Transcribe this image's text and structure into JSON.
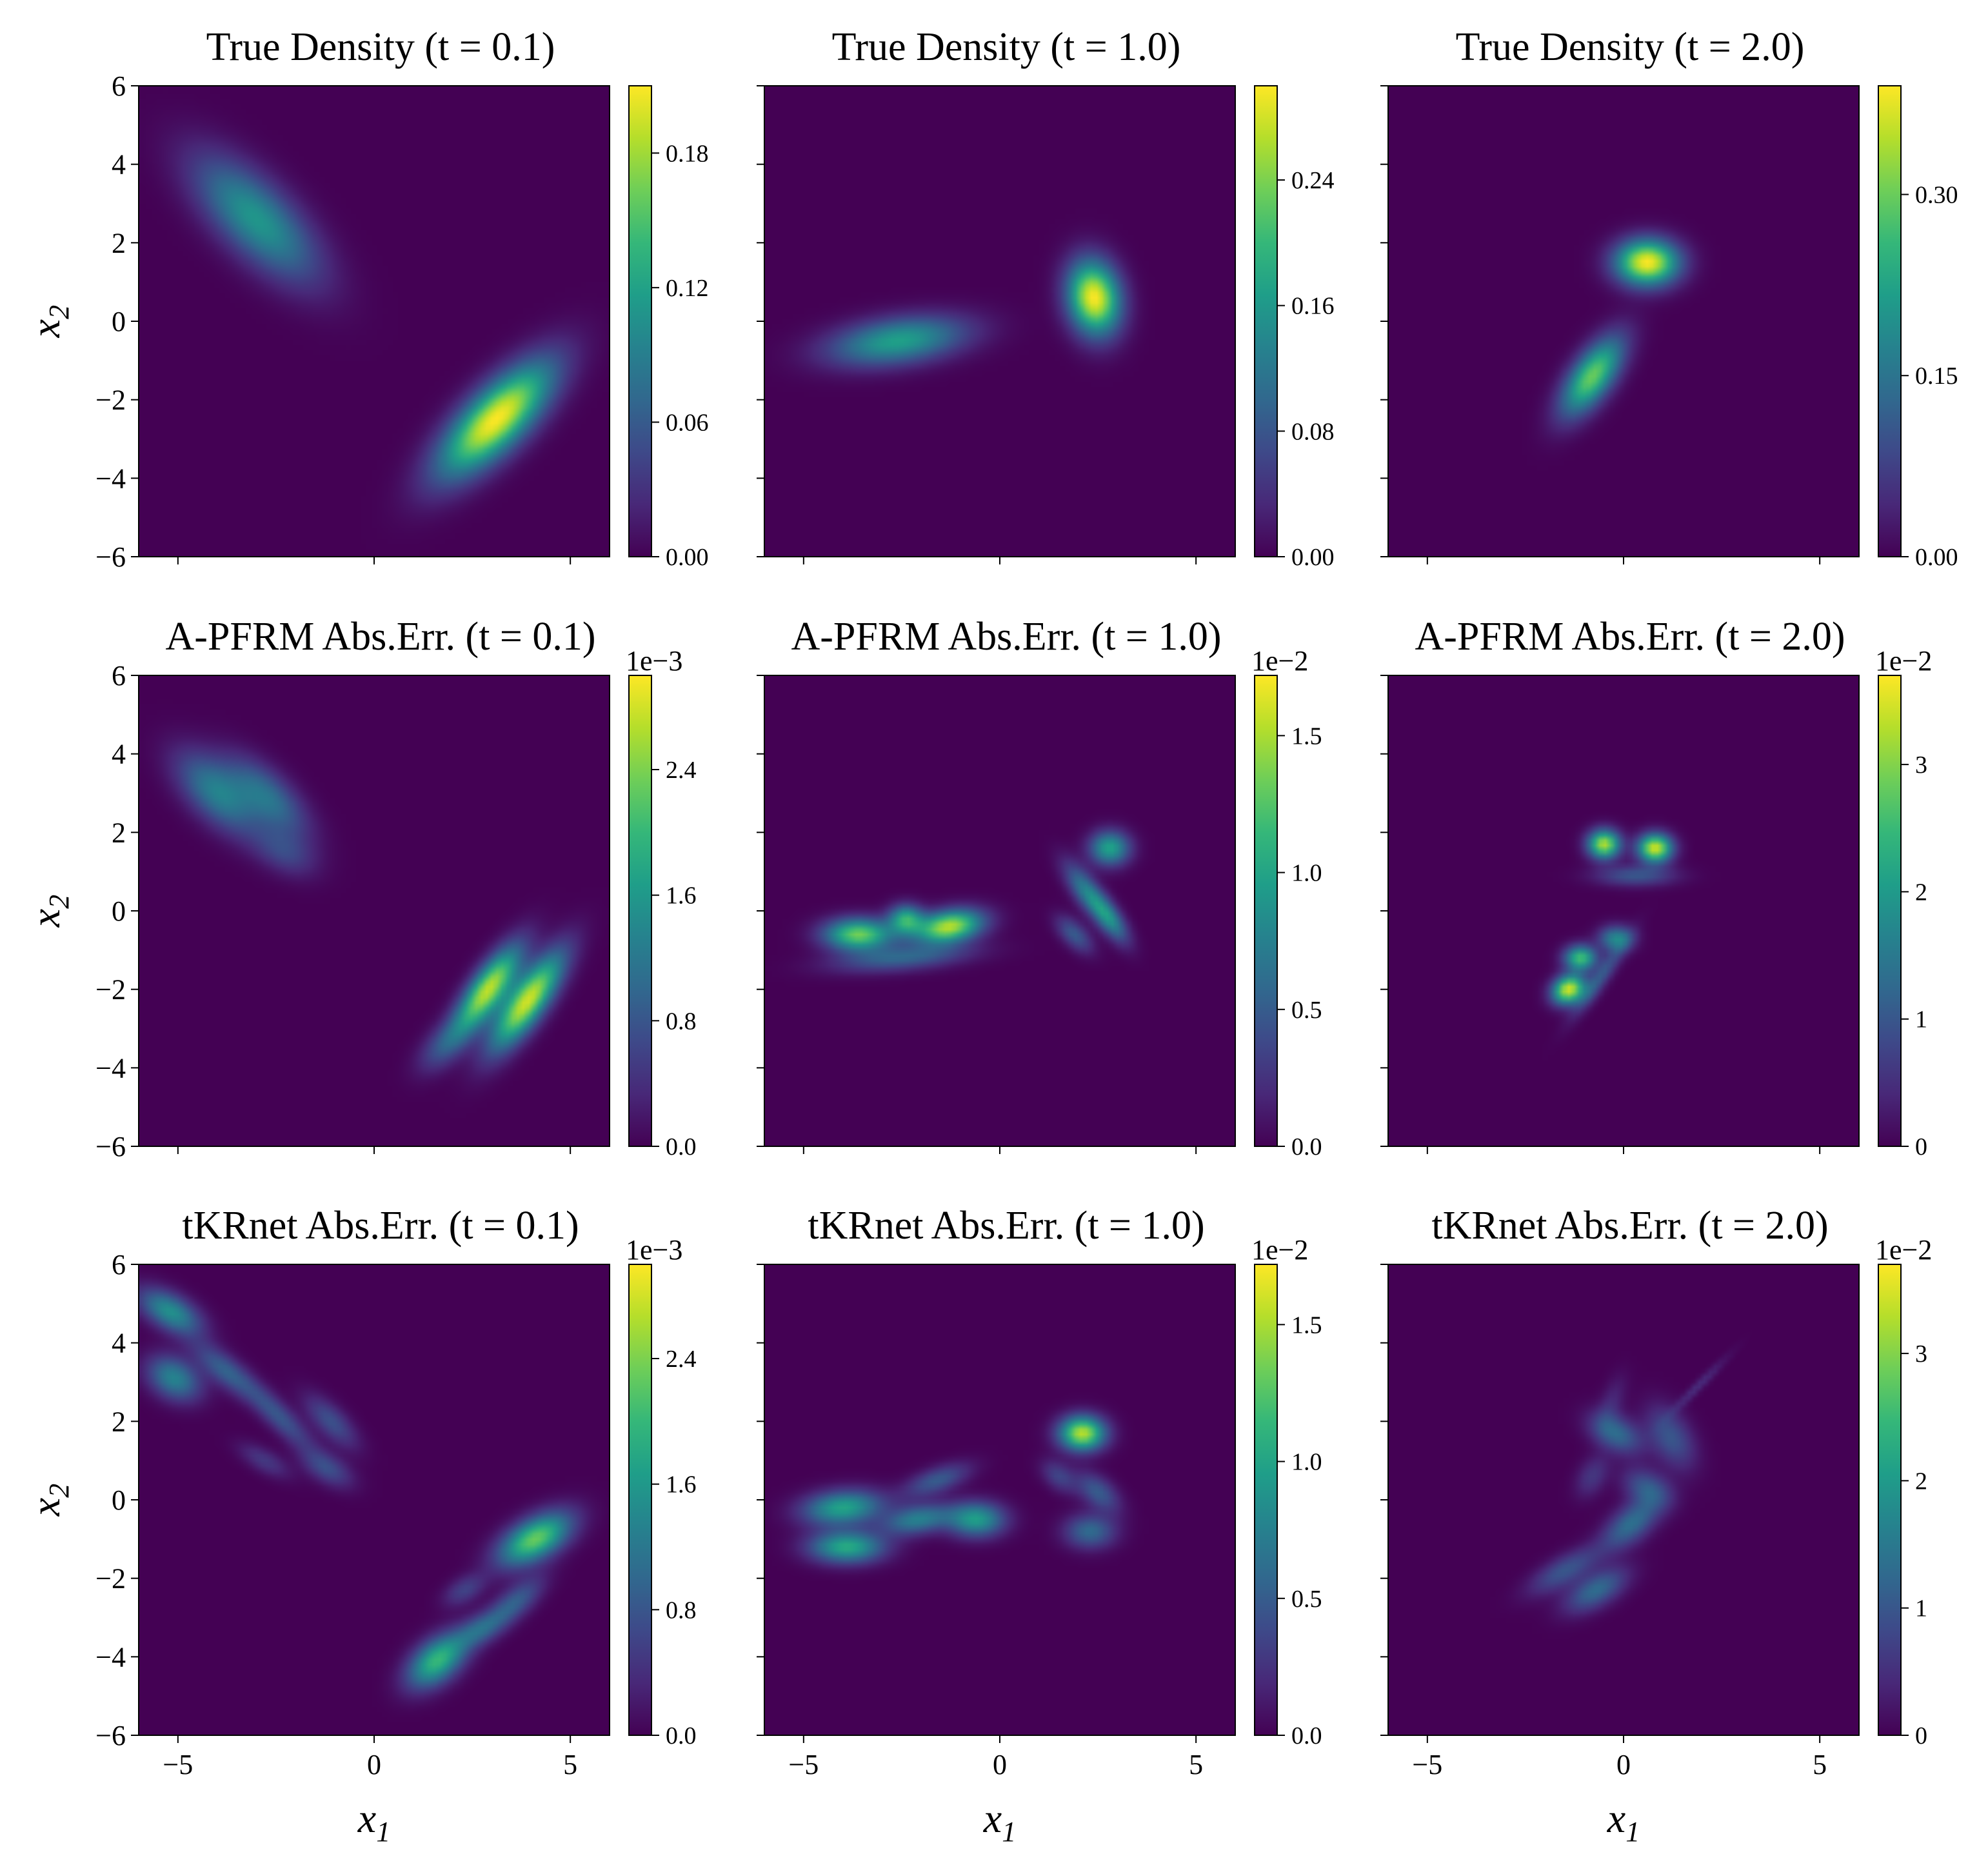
{
  "colors": {
    "viridis": [
      "#440154",
      "#482878",
      "#3e4989",
      "#31688e",
      "#26828e",
      "#1f9e89",
      "#35b779",
      "#6ece58",
      "#b5de2b",
      "#fde725"
    ],
    "background": "#ffffff",
    "axes": "#000000"
  },
  "chart_data": [
    {
      "type": "heatmap",
      "row": 0,
      "col": 0,
      "title": "True Density (t = 0.1)",
      "xlim": [
        -6,
        6
      ],
      "ylim": [
        -6,
        6
      ],
      "xticks": [
        "−5",
        "0",
        "5"
      ],
      "yticks": [
        "−6",
        "−4",
        "−2",
        "0",
        "2",
        "4",
        "6"
      ],
      "xlabel": "",
      "ylabel": "x2",
      "colorbar": {
        "min": 0,
        "max": 0.21,
        "ticks": [
          "0.00",
          "0.06",
          "0.12",
          "0.18"
        ],
        "tick_values": [
          0,
          0.06,
          0.12,
          0.18
        ],
        "offset": ""
      },
      "blobs": [
        {
          "x": -3.0,
          "y": 2.6,
          "sx": 1.4,
          "sy": 0.6,
          "angle": -45,
          "amp": 0.11
        },
        {
          "x": 3.1,
          "y": -2.5,
          "sx": 1.3,
          "sy": 0.5,
          "angle": 45,
          "amp": 0.21
        }
      ]
    },
    {
      "type": "heatmap",
      "row": 0,
      "col": 1,
      "title": "True Density (t = 1.0)",
      "xlim": [
        -6,
        6
      ],
      "ylim": [
        -6,
        6
      ],
      "xticks": [
        "−5",
        "0",
        "5"
      ],
      "yticks": [],
      "xlabel": "",
      "ylabel": "",
      "colorbar": {
        "min": 0,
        "max": 0.3,
        "ticks": [
          "0.00",
          "0.08",
          "0.16",
          "0.24"
        ],
        "tick_values": [
          0,
          0.08,
          0.16,
          0.24
        ],
        "offset": ""
      },
      "blobs": [
        {
          "x": -2.6,
          "y": -0.5,
          "sx": 1.2,
          "sy": 0.4,
          "angle": 8,
          "amp": 0.17
        },
        {
          "x": 2.4,
          "y": 0.6,
          "sx": 0.65,
          "sy": 0.45,
          "angle": -80,
          "amp": 0.3
        }
      ]
    },
    {
      "type": "heatmap",
      "row": 0,
      "col": 2,
      "title": "True Density (t = 2.0)",
      "xlim": [
        -6,
        6
      ],
      "ylim": [
        -6,
        6
      ],
      "xticks": [
        "−5",
        "0",
        "5"
      ],
      "yticks": [],
      "xlabel": "",
      "ylabel": "",
      "colorbar": {
        "min": 0,
        "max": 0.39,
        "ticks": [
          "0.00",
          "0.15",
          "0.30"
        ],
        "tick_values": [
          0,
          0.15,
          0.3
        ],
        "offset": ""
      },
      "blobs": [
        {
          "x": 0.6,
          "y": 1.5,
          "sx": 0.55,
          "sy": 0.4,
          "angle": 0,
          "amp": 0.39
        },
        {
          "x": -0.8,
          "y": -1.4,
          "sx": 0.8,
          "sy": 0.35,
          "angle": 55,
          "amp": 0.3
        }
      ]
    },
    {
      "type": "heatmap",
      "row": 1,
      "col": 0,
      "title": "A-PFRM Abs.Err. (t = 0.1)",
      "xlim": [
        -6,
        6
      ],
      "ylim": [
        -6,
        6
      ],
      "xticks": [
        "−5",
        "0",
        "5"
      ],
      "yticks": [
        "−6",
        "−4",
        "−2",
        "0",
        "2",
        "4",
        "6"
      ],
      "xlabel": "",
      "ylabel": "x2",
      "colorbar": {
        "min": 0,
        "max": 3.0,
        "ticks": [
          "0.0",
          "0.8",
          "1.6",
          "2.4"
        ],
        "tick_values": [
          0,
          0.8,
          1.6,
          2.4
        ],
        "offset": "1e−3"
      },
      "blobs": [
        {
          "x": -4.0,
          "y": 3.0,
          "sx": 0.9,
          "sy": 0.45,
          "angle": -45,
          "amp": 1.3
        },
        {
          "x": -2.7,
          "y": 2.9,
          "sx": 0.9,
          "sy": 0.4,
          "angle": -45,
          "amp": 1.1
        },
        {
          "x": -2.3,
          "y": 1.5,
          "sx": 0.6,
          "sy": 0.35,
          "angle": -30,
          "amp": 0.6
        },
        {
          "x": 2.9,
          "y": -2.0,
          "sx": 0.9,
          "sy": 0.3,
          "angle": 55,
          "amp": 2.7
        },
        {
          "x": 3.9,
          "y": -2.3,
          "sx": 1.0,
          "sy": 0.32,
          "angle": 55,
          "amp": 2.8
        },
        {
          "x": 1.8,
          "y": -3.4,
          "sx": 0.6,
          "sy": 0.3,
          "angle": 45,
          "amp": 0.7
        }
      ]
    },
    {
      "type": "heatmap",
      "row": 1,
      "col": 1,
      "title": "A-PFRM Abs.Err. (t = 1.0)",
      "xlim": [
        -6,
        6
      ],
      "ylim": [
        -6,
        6
      ],
      "xticks": [
        "−5",
        "0",
        "5"
      ],
      "yticks": [],
      "xlabel": "",
      "ylabel": "",
      "colorbar": {
        "min": 0,
        "max": 1.72,
        "ticks": [
          "0.0",
          "0.5",
          "1.0",
          "1.5"
        ],
        "tick_values": [
          0,
          0.5,
          1.0,
          1.5
        ],
        "offset": "1e−2"
      },
      "blobs": [
        {
          "x": -3.6,
          "y": -0.6,
          "sx": 0.6,
          "sy": 0.28,
          "angle": 0,
          "amp": 1.35
        },
        {
          "x": -1.3,
          "y": -0.4,
          "sx": 0.6,
          "sy": 0.28,
          "angle": 10,
          "amp": 1.55
        },
        {
          "x": -2.4,
          "y": -0.2,
          "sx": 0.3,
          "sy": 0.25,
          "angle": 0,
          "amp": 1.0
        },
        {
          "x": -2.5,
          "y": -1.2,
          "sx": 1.2,
          "sy": 0.22,
          "angle": 5,
          "amp": 0.55
        },
        {
          "x": 2.8,
          "y": 1.6,
          "sx": 0.35,
          "sy": 0.3,
          "angle": 0,
          "amp": 1.0
        },
        {
          "x": 2.2,
          "y": 0.5,
          "sx": 0.6,
          "sy": 0.22,
          "angle": -55,
          "amp": 0.7
        },
        {
          "x": 2.8,
          "y": -0.2,
          "sx": 0.5,
          "sy": 0.2,
          "angle": -55,
          "amp": 0.75
        },
        {
          "x": 1.9,
          "y": -0.6,
          "sx": 0.4,
          "sy": 0.2,
          "angle": -45,
          "amp": 0.5
        }
      ]
    },
    {
      "type": "heatmap",
      "row": 1,
      "col": 2,
      "title": "A-PFRM Abs.Err. (t = 2.0)",
      "xlim": [
        -6,
        6
      ],
      "ylim": [
        -6,
        6
      ],
      "xticks": [
        "−5",
        "0",
        "5"
      ],
      "yticks": [],
      "xlabel": "",
      "ylabel": "",
      "colorbar": {
        "min": 0,
        "max": 3.7,
        "ticks": [
          "0",
          "1",
          "2",
          "3"
        ],
        "tick_values": [
          0,
          1,
          2,
          3
        ],
        "offset": "1e−2"
      },
      "blobs": [
        {
          "x": -0.5,
          "y": 1.7,
          "sx": 0.28,
          "sy": 0.25,
          "angle": 0,
          "amp": 3.3
        },
        {
          "x": 0.8,
          "y": 1.6,
          "sx": 0.3,
          "sy": 0.25,
          "angle": 0,
          "amp": 3.5
        },
        {
          "x": 0.3,
          "y": 0.9,
          "sx": 0.7,
          "sy": 0.18,
          "angle": 0,
          "amp": 1.0
        },
        {
          "x": -1.1,
          "y": -1.2,
          "sx": 0.28,
          "sy": 0.22,
          "angle": 0,
          "amp": 2.6
        },
        {
          "x": -1.4,
          "y": -2.0,
          "sx": 0.3,
          "sy": 0.24,
          "angle": 30,
          "amp": 3.5
        },
        {
          "x": -0.2,
          "y": -0.7,
          "sx": 0.3,
          "sy": 0.22,
          "angle": 0,
          "amp": 1.7
        },
        {
          "x": -0.6,
          "y": -1.7,
          "sx": 0.8,
          "sy": 0.15,
          "angle": 55,
          "amp": 1.0
        }
      ]
    },
    {
      "type": "heatmap",
      "row": 2,
      "col": 0,
      "title": "tKRnet Abs.Err. (t = 0.1)",
      "xlim": [
        -6,
        6
      ],
      "ylim": [
        -6,
        6
      ],
      "xticks": [
        "−5",
        "0",
        "5"
      ],
      "yticks": [
        "−6",
        "−4",
        "−2",
        "0",
        "2",
        "4",
        "6"
      ],
      "xlabel": "x1",
      "ylabel": "x2",
      "colorbar": {
        "min": 0,
        "max": 3.0,
        "ticks": [
          "0.0",
          "0.8",
          "1.6",
          "2.4"
        ],
        "tick_values": [
          0,
          0.8,
          1.6,
          2.4
        ],
        "offset": "1e−3"
      },
      "blobs": [
        {
          "x": -5.2,
          "y": 4.8,
          "sx": 0.6,
          "sy": 0.3,
          "angle": -30,
          "amp": 1.5
        },
        {
          "x": -5.1,
          "y": 3.1,
          "sx": 0.5,
          "sy": 0.35,
          "angle": -30,
          "amp": 1.35
        },
        {
          "x": -3.8,
          "y": 3.3,
          "sx": 0.7,
          "sy": 0.25,
          "angle": -40,
          "amp": 0.9
        },
        {
          "x": -2.4,
          "y": 2.1,
          "sx": 0.8,
          "sy": 0.22,
          "angle": -45,
          "amp": 0.8
        },
        {
          "x": -1.1,
          "y": 2.0,
          "sx": 0.6,
          "sy": 0.25,
          "angle": -45,
          "amp": 0.75
        },
        {
          "x": -1.2,
          "y": 0.8,
          "sx": 0.5,
          "sy": 0.25,
          "angle": -30,
          "amp": 0.7
        },
        {
          "x": -2.8,
          "y": 1.0,
          "sx": 0.5,
          "sy": 0.2,
          "angle": -30,
          "amp": 0.5
        },
        {
          "x": 4.1,
          "y": -1.0,
          "sx": 0.7,
          "sy": 0.35,
          "angle": 30,
          "amp": 2.3
        },
        {
          "x": 3.6,
          "y": -2.6,
          "sx": 0.6,
          "sy": 0.25,
          "angle": 40,
          "amp": 0.9
        },
        {
          "x": 2.7,
          "y": -3.3,
          "sx": 0.5,
          "sy": 0.25,
          "angle": 30,
          "amp": 0.9
        },
        {
          "x": 1.6,
          "y": -4.1,
          "sx": 0.6,
          "sy": 0.35,
          "angle": 40,
          "amp": 2.0
        },
        {
          "x": 2.3,
          "y": -2.3,
          "sx": 0.4,
          "sy": 0.22,
          "angle": 30,
          "amp": 0.6
        }
      ]
    },
    {
      "type": "heatmap",
      "row": 2,
      "col": 1,
      "title": "tKRnet Abs.Err. (t = 1.0)",
      "xlim": [
        -6,
        6
      ],
      "ylim": [
        -6,
        6
      ],
      "xticks": [
        "−5",
        "0",
        "5"
      ],
      "yticks": [],
      "xlabel": "x1",
      "ylabel": "",
      "colorbar": {
        "min": 0,
        "max": 1.72,
        "ticks": [
          "0.0",
          "0.5",
          "1.0",
          "1.5"
        ],
        "tick_values": [
          0,
          0.5,
          1.0,
          1.5
        ],
        "offset": "1e−2"
      },
      "blobs": [
        {
          "x": -4.0,
          "y": -0.2,
          "sx": 0.7,
          "sy": 0.3,
          "angle": 5,
          "amp": 1.0
        },
        {
          "x": -3.9,
          "y": -1.2,
          "sx": 0.65,
          "sy": 0.28,
          "angle": 0,
          "amp": 1.05
        },
        {
          "x": -2.1,
          "y": -0.5,
          "sx": 0.6,
          "sy": 0.25,
          "angle": 10,
          "amp": 0.75
        },
        {
          "x": -0.6,
          "y": -0.5,
          "sx": 0.5,
          "sy": 0.3,
          "angle": 0,
          "amp": 0.95
        },
        {
          "x": -1.6,
          "y": 0.5,
          "sx": 0.6,
          "sy": 0.22,
          "angle": 20,
          "amp": 0.5
        },
        {
          "x": 2.1,
          "y": 1.7,
          "sx": 0.4,
          "sy": 0.3,
          "angle": 0,
          "amp": 1.55
        },
        {
          "x": 2.5,
          "y": 0.2,
          "sx": 0.45,
          "sy": 0.25,
          "angle": -40,
          "amp": 0.5
        },
        {
          "x": 2.3,
          "y": -0.8,
          "sx": 0.45,
          "sy": 0.3,
          "angle": 0,
          "amp": 0.6
        },
        {
          "x": 1.5,
          "y": 0.6,
          "sx": 0.35,
          "sy": 0.22,
          "angle": -40,
          "amp": 0.35
        }
      ]
    },
    {
      "type": "heatmap",
      "row": 2,
      "col": 2,
      "title": "tKRnet Abs.Err. (t = 2.0)",
      "xlim": [
        -6,
        6
      ],
      "ylim": [
        -6,
        6
      ],
      "xticks": [
        "−5",
        "0",
        "5"
      ],
      "yticks": [],
      "xlabel": "x1",
      "ylabel": "",
      "colorbar": {
        "min": 0,
        "max": 3.7,
        "ticks": [
          "0",
          "1",
          "2",
          "3"
        ],
        "tick_values": [
          0,
          1,
          2,
          3
        ],
        "offset": "1e−2"
      },
      "blobs": [
        {
          "x": -0.2,
          "y": 1.7,
          "sx": 0.5,
          "sy": 0.3,
          "angle": -30,
          "amp": 1.3
        },
        {
          "x": 1.2,
          "y": 1.6,
          "sx": 0.6,
          "sy": 0.35,
          "angle": -60,
          "amp": 1.0
        },
        {
          "x": 0.6,
          "y": 0.3,
          "sx": 0.45,
          "sy": 0.3,
          "angle": -30,
          "amp": 1.05
        },
        {
          "x": 0.2,
          "y": -0.6,
          "sx": 0.6,
          "sy": 0.3,
          "angle": 40,
          "amp": 1.35
        },
        {
          "x": -1.5,
          "y": -1.8,
          "sx": 0.7,
          "sy": 0.25,
          "angle": 30,
          "amp": 1.0
        },
        {
          "x": -0.7,
          "y": -2.3,
          "sx": 0.6,
          "sy": 0.28,
          "angle": 30,
          "amp": 1.3
        },
        {
          "x": -0.8,
          "y": 0.6,
          "sx": 0.4,
          "sy": 0.25,
          "angle": 60,
          "amp": 0.6
        },
        {
          "x": -0.3,
          "y": 2.5,
          "sx": 0.5,
          "sy": 0.2,
          "angle": 70,
          "amp": 0.4
        },
        {
          "x": 1.9,
          "y": 2.9,
          "sx": 0.7,
          "sy": 0.08,
          "angle": 45,
          "amp": 0.5
        }
      ]
    }
  ]
}
